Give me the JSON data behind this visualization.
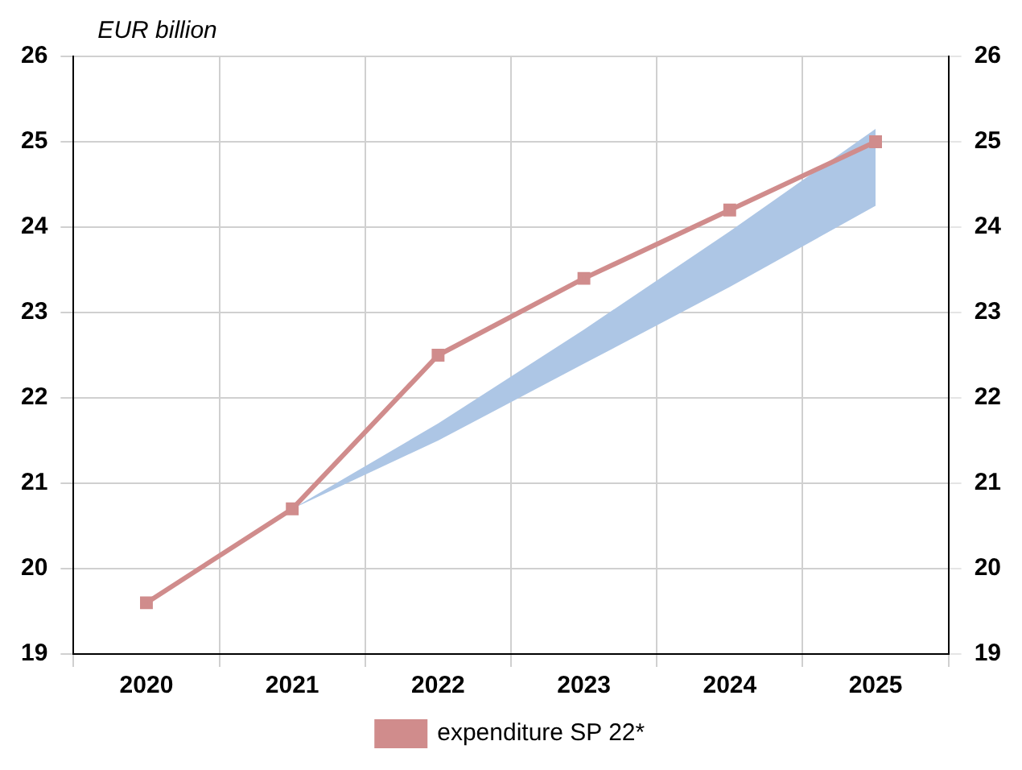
{
  "chart_data": {
    "type": "line",
    "ylabel": "EUR billion",
    "categories": [
      "2020",
      "2021",
      "2022",
      "2023",
      "2024",
      "2025"
    ],
    "series": [
      {
        "name": "expenditure SP 22*",
        "color": "#d08c8c",
        "values": [
          19.6,
          20.7,
          22.5,
          23.4,
          24.2,
          25.0
        ]
      },
      {
        "type": "area",
        "color": "#adc6e5",
        "values": [
          null,
          null,
          null,
          null,
          null,
          null
        ],
        "lower": [
          null,
          20.7,
          21.5,
          22.4,
          23.3,
          24.25
        ],
        "upper": [
          null,
          20.7,
          21.7,
          22.8,
          23.95,
          25.15
        ]
      }
    ],
    "ylim": [
      19,
      26
    ],
    "yticks": [
      19,
      20,
      21,
      22,
      23,
      24,
      25,
      26
    ],
    "y2lim": [
      19,
      26
    ],
    "y2ticks": [
      19,
      20,
      21,
      22,
      23,
      24,
      25,
      26
    ],
    "grid": true,
    "legend": "bottom",
    "marker": "square",
    "line_style": "solid"
  }
}
